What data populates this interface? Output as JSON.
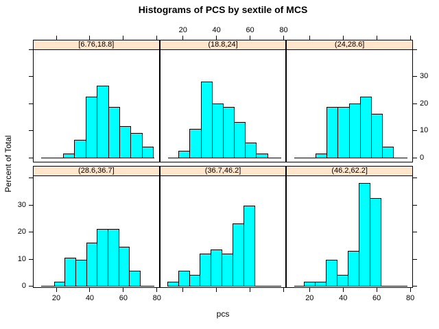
{
  "title": "Histograms of PCS by sextile of MCS",
  "xlabel": "pcs",
  "ylabel": "Percent of Total",
  "colors": {
    "bar_fill": "#00FFFF",
    "bar_border": "#000000",
    "strip_background": "#FFE5CC",
    "panel_border": "#000000",
    "text": "#000000"
  },
  "chart_data": {
    "type": "bar",
    "subtype": "trellis-histogram",
    "layout": {
      "rows": 2,
      "cols": 3
    },
    "xlim": [
      6.3,
      81.8
    ],
    "ylim": [
      -1.8,
      40.5
    ],
    "x_ticks": [
      20,
      40,
      60,
      80
    ],
    "y_ticks": [
      0,
      10,
      20,
      30,
      40
    ],
    "y_labeled_ticks": [
      0,
      10,
      20,
      30
    ],
    "x_labels_top_cols": [
      1
    ],
    "x_labels_bottom_cols": [
      0,
      2
    ],
    "y_labels_left_rows": [
      1
    ],
    "y_labels_right_rows": [
      0
    ],
    "baseline_span": [
      11.2,
      78.6
    ],
    "grid": false,
    "panels": [
      {
        "strip": "[6.76,18.8]",
        "row": 0,
        "col": 0,
        "bin_edges": [
          24.3,
          31.0,
          37.7,
          44.4,
          51.1,
          57.8,
          64.5,
          71.2,
          77.9
        ],
        "percent": [
          1.5,
          6.5,
          22.5,
          26.5,
          18.5,
          11.5,
          9,
          4
        ]
      },
      {
        "strip": "(18.8,24]",
        "row": 0,
        "col": 1,
        "bin_edges": [
          17.6,
          24.2,
          30.8,
          37.4,
          44.0,
          50.6,
          57.2,
          63.8,
          70.4
        ],
        "percent": [
          2.5,
          10.5,
          28,
          20,
          18.5,
          13,
          5.5,
          1.5
        ]
      },
      {
        "strip": "(24,28.6]",
        "row": 0,
        "col": 2,
        "bin_edges": [
          23.8,
          30.4,
          37.0,
          43.6,
          50.2,
          56.8,
          63.4,
          70.0
        ],
        "percent": [
          1.5,
          18.5,
          18.5,
          20,
          22.5,
          16,
          4
        ]
      },
      {
        "strip": "(28.6,36.7]",
        "row": 1,
        "col": 0,
        "bin_edges": [
          18.8,
          25.2,
          31.6,
          38.0,
          44.4,
          50.8,
          57.2,
          63.6,
          70.0
        ],
        "percent": [
          1.5,
          10.5,
          9.5,
          16,
          21,
          21,
          14.5,
          5.5
        ]
      },
      {
        "strip": "(36.7,46.2]",
        "row": 1,
        "col": 1,
        "bin_edges": [
          10.8,
          17.3,
          23.8,
          30.3,
          36.8,
          43.3,
          49.8,
          56.3,
          62.8
        ],
        "percent": [
          1.5,
          5.5,
          4,
          12,
          13.5,
          12,
          23,
          29.5
        ]
      },
      {
        "strip": "(46.2,62.2]",
        "row": 1,
        "col": 2,
        "bin_edges": [
          17.0,
          23.5,
          30.0,
          36.5,
          43.0,
          49.5,
          56.0,
          62.5
        ],
        "percent": [
          1.5,
          1.5,
          9.5,
          4,
          13,
          38,
          32.5
        ]
      }
    ]
  }
}
